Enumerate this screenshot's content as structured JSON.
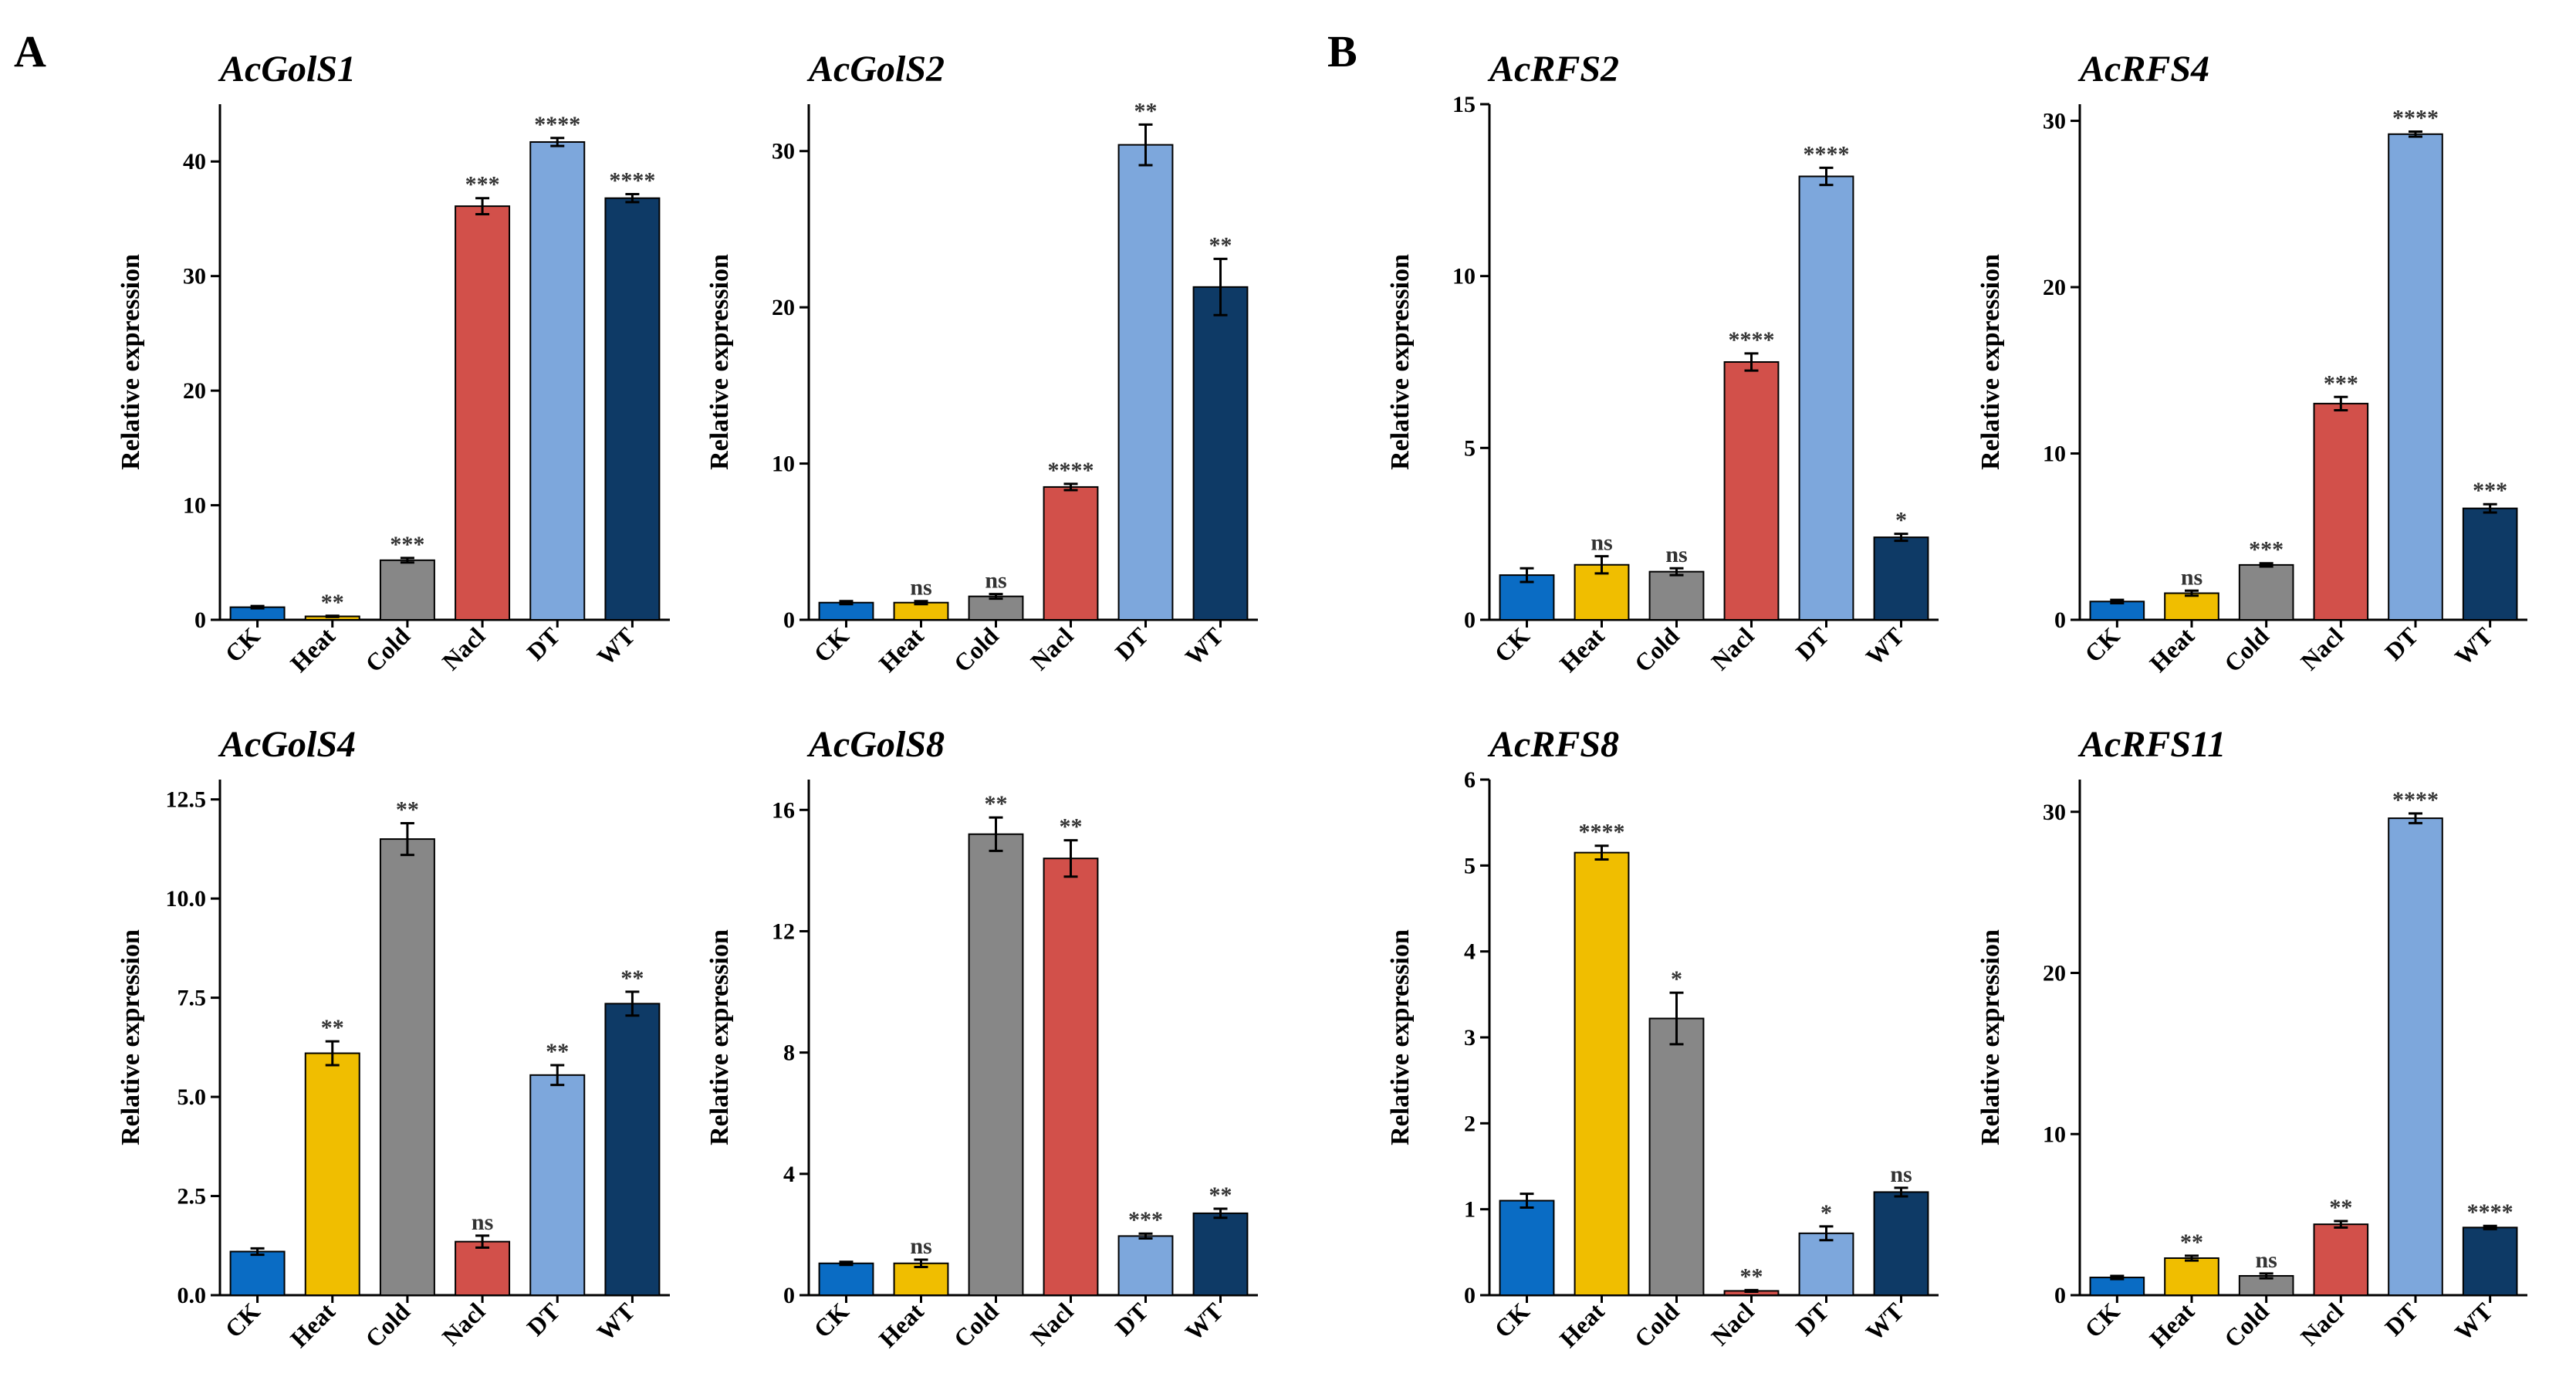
{
  "panel_labels": [
    "A",
    "B"
  ],
  "legend_colors": {
    "CK": "#0A6CC4",
    "Heat": "#F0BE00",
    "Cold": "#878787",
    "Nacl": "#D2504A",
    "DT": "#7DA7DC",
    "WT": "#0E3A66"
  },
  "chart_data": [
    {
      "type": "bar",
      "panel": "A",
      "title": "AcGolS1",
      "ylabel": "Relative expression",
      "categories": [
        "CK",
        "Heat",
        "Cold",
        "Nacl",
        "DT",
        "WT"
      ],
      "values": [
        1.1,
        0.3,
        5.2,
        36.1,
        41.7,
        36.8
      ],
      "errors": [
        0.1,
        0.05,
        0.2,
        0.7,
        0.35,
        0.35
      ],
      "significance": [
        "",
        "**",
        "***",
        "***",
        "****",
        "****"
      ],
      "ylim": [
        0,
        45
      ],
      "yticks": [
        0,
        10,
        20,
        30,
        40
      ],
      "ytick_labels": [
        "0",
        "10",
        "20",
        "30",
        "40"
      ]
    },
    {
      "type": "bar",
      "panel": "A",
      "title": "AcGolS2",
      "ylabel": "Relative expression",
      "categories": [
        "CK",
        "Heat",
        "Cold",
        "Nacl",
        "DT",
        "WT"
      ],
      "values": [
        1.1,
        1.1,
        1.5,
        8.5,
        30.4,
        21.3
      ],
      "errors": [
        0.1,
        0.1,
        0.15,
        0.2,
        1.3,
        1.8
      ],
      "significance": [
        "",
        "ns",
        "ns",
        "****",
        "**",
        "**"
      ],
      "ylim": [
        0,
        33
      ],
      "yticks": [
        0,
        10,
        20,
        30
      ],
      "ytick_labels": [
        "0",
        "10",
        "20",
        "30"
      ]
    },
    {
      "type": "bar",
      "panel": "B",
      "title": "AcRFS2",
      "ylabel": "Relative expression",
      "categories": [
        "CK",
        "Heat",
        "Cold",
        "Nacl",
        "DT",
        "WT"
      ],
      "values": [
        1.3,
        1.6,
        1.4,
        7.5,
        12.9,
        2.4
      ],
      "errors": [
        0.2,
        0.25,
        0.1,
        0.25,
        0.25,
        0.1
      ],
      "significance": [
        "",
        "ns",
        "ns",
        "****",
        "****",
        "*"
      ],
      "ylim": [
        0,
        15
      ],
      "yticks": [
        0,
        5,
        10,
        15
      ],
      "ytick_labels": [
        "0",
        "5",
        "10",
        "15"
      ]
    },
    {
      "type": "bar",
      "panel": "B",
      "title": "AcRFS4",
      "ylabel": "Relative expression",
      "categories": [
        "CK",
        "Heat",
        "Cold",
        "Nacl",
        "DT",
        "WT"
      ],
      "values": [
        1.1,
        1.6,
        3.3,
        13.0,
        29.2,
        6.7
      ],
      "errors": [
        0.1,
        0.15,
        0.1,
        0.4,
        0.15,
        0.25
      ],
      "significance": [
        "",
        "ns",
        "***",
        "***",
        "****",
        "***"
      ],
      "ylim": [
        0,
        31
      ],
      "yticks": [
        0,
        10,
        20,
        30
      ],
      "ytick_labels": [
        "0",
        "10",
        "20",
        "30"
      ]
    },
    {
      "type": "bar",
      "panel": "A",
      "title": "AcGolS4",
      "ylabel": "Relative expression",
      "categories": [
        "CK",
        "Heat",
        "Cold",
        "Nacl",
        "DT",
        "WT"
      ],
      "values": [
        1.1,
        6.1,
        11.5,
        1.35,
        5.55,
        7.35
      ],
      "errors": [
        0.08,
        0.3,
        0.4,
        0.15,
        0.25,
        0.3
      ],
      "significance": [
        "",
        "**",
        "**",
        "ns",
        "**",
        "**"
      ],
      "ylim": [
        0,
        13
      ],
      "yticks": [
        0,
        2.5,
        5,
        7.5,
        10,
        12.5
      ],
      "ytick_labels": [
        "0.0",
        "2.5",
        "5.0",
        "7.5",
        "10.0",
        "12.5"
      ]
    },
    {
      "type": "bar",
      "panel": "A",
      "title": "AcGolS8",
      "ylabel": "Relative expression",
      "categories": [
        "CK",
        "Heat",
        "Cold",
        "Nacl",
        "DT",
        "WT"
      ],
      "values": [
        1.05,
        1.05,
        15.2,
        14.4,
        1.95,
        2.7
      ],
      "errors": [
        0.05,
        0.12,
        0.55,
        0.6,
        0.08,
        0.15
      ],
      "significance": [
        "",
        "ns",
        "**",
        "**",
        "***",
        "**"
      ],
      "ylim": [
        0,
        17
      ],
      "yticks": [
        0,
        4,
        8,
        12,
        16
      ],
      "ytick_labels": [
        "0",
        "4",
        "8",
        "12",
        "16"
      ]
    },
    {
      "type": "bar",
      "panel": "B",
      "title": "AcRFS8",
      "ylabel": "Relative expression",
      "categories": [
        "CK",
        "Heat",
        "Cold",
        "Nacl",
        "DT",
        "WT"
      ],
      "values": [
        1.1,
        5.15,
        3.22,
        0.05,
        0.72,
        1.2
      ],
      "errors": [
        0.08,
        0.08,
        0.3,
        0.01,
        0.08,
        0.05
      ],
      "significance": [
        "",
        "****",
        "*",
        "**",
        "*",
        "ns"
      ],
      "ylim": [
        0,
        6
      ],
      "yticks": [
        0,
        1,
        2,
        3,
        4,
        5,
        6
      ],
      "ytick_labels": [
        "0",
        "1",
        "2",
        "3",
        "4",
        "5",
        "6"
      ]
    },
    {
      "type": "bar",
      "panel": "B",
      "title": "AcRFS11",
      "ylabel": "Relative expression",
      "categories": [
        "CK",
        "Heat",
        "Cold",
        "Nacl",
        "DT",
        "WT"
      ],
      "values": [
        1.1,
        2.3,
        1.2,
        4.4,
        29.6,
        4.2
      ],
      "errors": [
        0.1,
        0.15,
        0.15,
        0.2,
        0.3,
        0.1
      ],
      "significance": [
        "",
        "**",
        "ns",
        "**",
        "****",
        "****"
      ],
      "ylim": [
        0,
        32
      ],
      "yticks": [
        0,
        10,
        20,
        30
      ],
      "ytick_labels": [
        "0",
        "10",
        "20",
        "30"
      ]
    }
  ]
}
